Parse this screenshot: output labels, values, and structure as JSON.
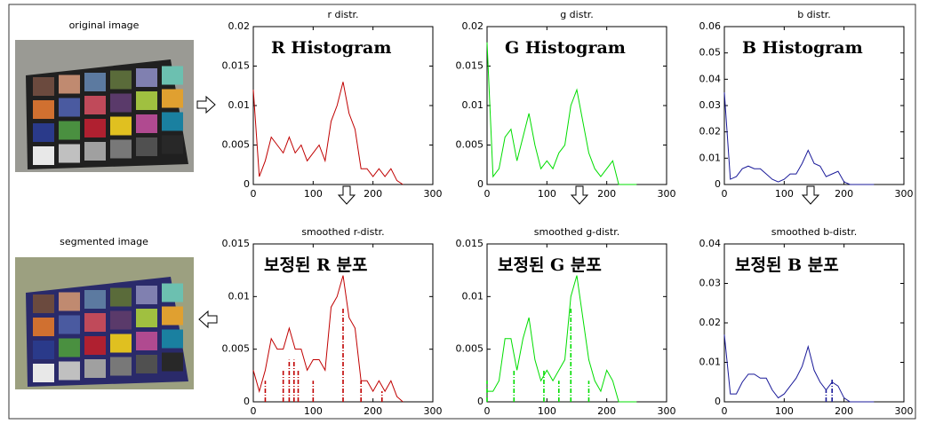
{
  "labels": {
    "original": "original image",
    "segmented": "segmented image"
  },
  "chart_data": [
    {
      "type": "line",
      "title": "r distr.",
      "annotation": "R Histogram",
      "x": [
        0,
        10,
        20,
        30,
        40,
        50,
        60,
        70,
        80,
        90,
        100,
        110,
        120,
        130,
        140,
        150,
        160,
        170,
        180,
        190,
        200,
        210,
        220,
        230,
        240,
        250
      ],
      "series": [
        {
          "color": "#c00000",
          "values": [
            0.012,
            0.001,
            0.003,
            0.006,
            0.005,
            0.004,
            0.006,
            0.004,
            0.005,
            0.003,
            0.004,
            0.005,
            0.003,
            0.008,
            0.01,
            0.013,
            0.009,
            0.007,
            0.002,
            0.002,
            0.001,
            0.002,
            0.001,
            0.002,
            0.0005,
            0
          ]
        }
      ],
      "xlim": [
        0,
        300
      ],
      "xticks": [
        0,
        100,
        200,
        300
      ],
      "ylim": [
        0,
        0.02
      ],
      "yticks": [
        0,
        0.005,
        0.01,
        0.015,
        0.02
      ]
    },
    {
      "type": "line",
      "title": "g distr.",
      "annotation": "G Histogram",
      "x": [
        0,
        10,
        20,
        30,
        40,
        50,
        60,
        70,
        80,
        90,
        100,
        110,
        120,
        130,
        140,
        150,
        160,
        170,
        180,
        190,
        200,
        210,
        220,
        230,
        240,
        250
      ],
      "series": [
        {
          "color": "#00dd00",
          "values": [
            0.018,
            0.001,
            0.002,
            0.006,
            0.007,
            0.003,
            0.006,
            0.009,
            0.005,
            0.002,
            0.003,
            0.002,
            0.004,
            0.005,
            0.01,
            0.012,
            0.008,
            0.004,
            0.002,
            0.001,
            0.002,
            0.003,
            0,
            0,
            0,
            0
          ]
        }
      ],
      "xlim": [
        0,
        300
      ],
      "xticks": [
        0,
        100,
        200,
        300
      ],
      "ylim": [
        0,
        0.02
      ],
      "yticks": [
        0,
        0.005,
        0.01,
        0.015,
        0.02
      ]
    },
    {
      "type": "line",
      "title": "b distr.",
      "annotation": "B Histogram",
      "x": [
        0,
        10,
        20,
        30,
        40,
        50,
        60,
        70,
        80,
        90,
        100,
        110,
        120,
        130,
        140,
        150,
        160,
        170,
        180,
        190,
        200,
        210,
        220,
        230,
        240,
        250
      ],
      "series": [
        {
          "color": "#1a1a99",
          "values": [
            0.035,
            0.002,
            0.003,
            0.006,
            0.007,
            0.006,
            0.006,
            0.004,
            0.002,
            0.001,
            0.002,
            0.004,
            0.004,
            0.008,
            0.013,
            0.008,
            0.007,
            0.003,
            0.004,
            0.005,
            0.001,
            0,
            0,
            0,
            0,
            0
          ]
        }
      ],
      "xlim": [
        0,
        300
      ],
      "xticks": [
        0,
        100,
        200,
        300
      ],
      "ylim": [
        0,
        0.06
      ],
      "yticks": [
        0,
        0.01,
        0.02,
        0.03,
        0.04,
        0.05,
        0.06
      ]
    },
    {
      "type": "line",
      "title": "smoothed r-distr.",
      "annotation": "보정된 R 분포",
      "x": [
        0,
        10,
        20,
        30,
        40,
        50,
        60,
        70,
        80,
        90,
        100,
        110,
        120,
        130,
        140,
        150,
        160,
        170,
        180,
        190,
        200,
        210,
        220,
        230,
        240,
        250
      ],
      "series": [
        {
          "color": "#c00000",
          "values": [
            0.003,
            0.001,
            0.003,
            0.006,
            0.005,
            0.005,
            0.007,
            0.005,
            0.005,
            0.003,
            0.004,
            0.004,
            0.003,
            0.009,
            0.01,
            0.012,
            0.008,
            0.007,
            0.002,
            0.002,
            0.001,
            0.002,
            0.001,
            0.002,
            0.0005,
            0
          ]
        }
      ],
      "stems": {
        "x": [
          20,
          50,
          60,
          68,
          75,
          100,
          150,
          180,
          215
        ],
        "values": [
          0.002,
          0.003,
          0.004,
          0.004,
          0.003,
          0.002,
          0.009,
          0.002,
          0.001
        ]
      },
      "xlim": [
        0,
        300
      ],
      "xticks": [
        0,
        100,
        200,
        300
      ],
      "ylim": [
        0,
        0.015
      ],
      "yticks": [
        0,
        0.005,
        0.01,
        0.015
      ]
    },
    {
      "type": "line",
      "title": "smoothed g-distr.",
      "annotation": "보정된 G 분포",
      "x": [
        0,
        10,
        20,
        30,
        40,
        50,
        60,
        70,
        80,
        90,
        100,
        110,
        120,
        130,
        140,
        150,
        160,
        170,
        180,
        190,
        200,
        210,
        220,
        230,
        240,
        250
      ],
      "series": [
        {
          "color": "#00dd00",
          "values": [
            0.001,
            0.001,
            0.002,
            0.006,
            0.006,
            0.003,
            0.006,
            0.008,
            0.004,
            0.002,
            0.003,
            0.002,
            0.003,
            0.004,
            0.01,
            0.012,
            0.008,
            0.004,
            0.002,
            0.001,
            0.003,
            0.002,
            0,
            0,
            0,
            0
          ]
        }
      ],
      "stems": {
        "x": [
          0,
          45,
          95,
          120,
          140,
          170
        ],
        "values": [
          0.002,
          0.003,
          0.003,
          0.002,
          0.009,
          0.002
        ]
      },
      "xlim": [
        0,
        300
      ],
      "xticks": [
        0,
        100,
        200,
        300
      ],
      "ylim": [
        0,
        0.015
      ],
      "yticks": [
        0,
        0.005,
        0.01,
        0.015
      ]
    },
    {
      "type": "line",
      "title": "smoothed b-distr.",
      "annotation": "보정된 B 분포",
      "x": [
        0,
        10,
        20,
        30,
        40,
        50,
        60,
        70,
        80,
        90,
        100,
        110,
        120,
        130,
        140,
        150,
        160,
        170,
        180,
        190,
        200,
        210,
        220,
        230,
        240,
        250
      ],
      "series": [
        {
          "color": "#1a1a99",
          "values": [
            0.017,
            0.002,
            0.002,
            0.005,
            0.007,
            0.007,
            0.006,
            0.006,
            0.003,
            0.001,
            0.002,
            0.004,
            0.006,
            0.009,
            0.014,
            0.008,
            0.005,
            0.003,
            0.005,
            0.004,
            0.001,
            0,
            0,
            0,
            0,
            0
          ]
        }
      ],
      "stems": {
        "x": [
          170,
          180
        ],
        "values": [
          0.003,
          0.006
        ]
      },
      "xlim": [
        0,
        300
      ],
      "xticks": [
        0,
        100,
        200,
        300
      ],
      "ylim": [
        0,
        0.04
      ],
      "yticks": [
        0,
        0.01,
        0.02,
        0.03,
        0.04
      ]
    }
  ]
}
